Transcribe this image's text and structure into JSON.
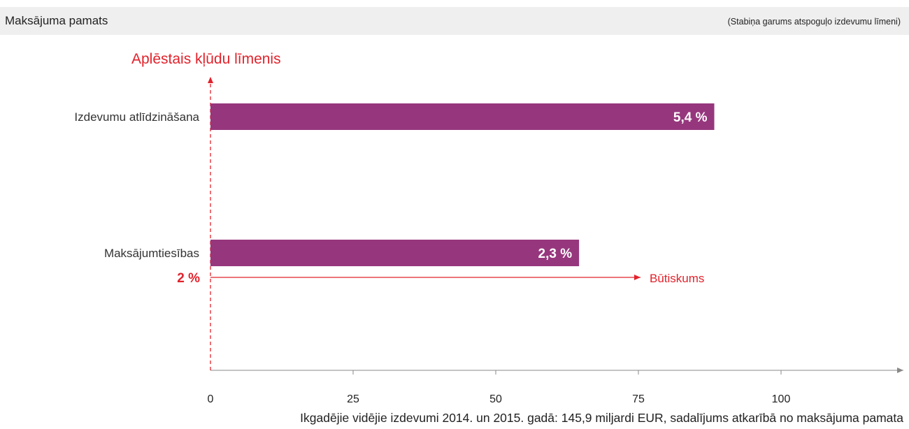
{
  "header": {
    "title": "Maksājuma pamats",
    "note": "(Stabiņa garums atspoguļo izdevumu līmeni)"
  },
  "colors": {
    "bar": "#96377d",
    "accent": "#e2222b",
    "axis": "#888888",
    "header_bg": "#efefef",
    "text": "#222222"
  },
  "chart_data": {
    "type": "bar",
    "orientation": "horizontal",
    "title": "Maksājuma pamats",
    "subtitle": "(Stabiņa garums atspoguļo izdevumu līmeni)",
    "categories": [
      "Izdevumu atlīdzināšana",
      "Maksājumtiesības"
    ],
    "values": [
      88.3,
      64.6
    ],
    "data_labels": [
      "5,4 %",
      "2,3 %"
    ],
    "xlim": [
      0,
      130
    ],
    "xticks": [
      0,
      25,
      50,
      75,
      100
    ],
    "xlabel": "Ikgadējie vidējie izdevumi 2014. un 2015. gadā: 145,9 miljardi EUR, sadalījums atkarībā no maksājuma pamata",
    "ylabel": "Aplēstais kļūdu līmenis",
    "threshold": {
      "label": "2 %",
      "arrow_label": "Būtiskums",
      "extends_to": 75
    },
    "grid": false,
    "legend": "none"
  }
}
